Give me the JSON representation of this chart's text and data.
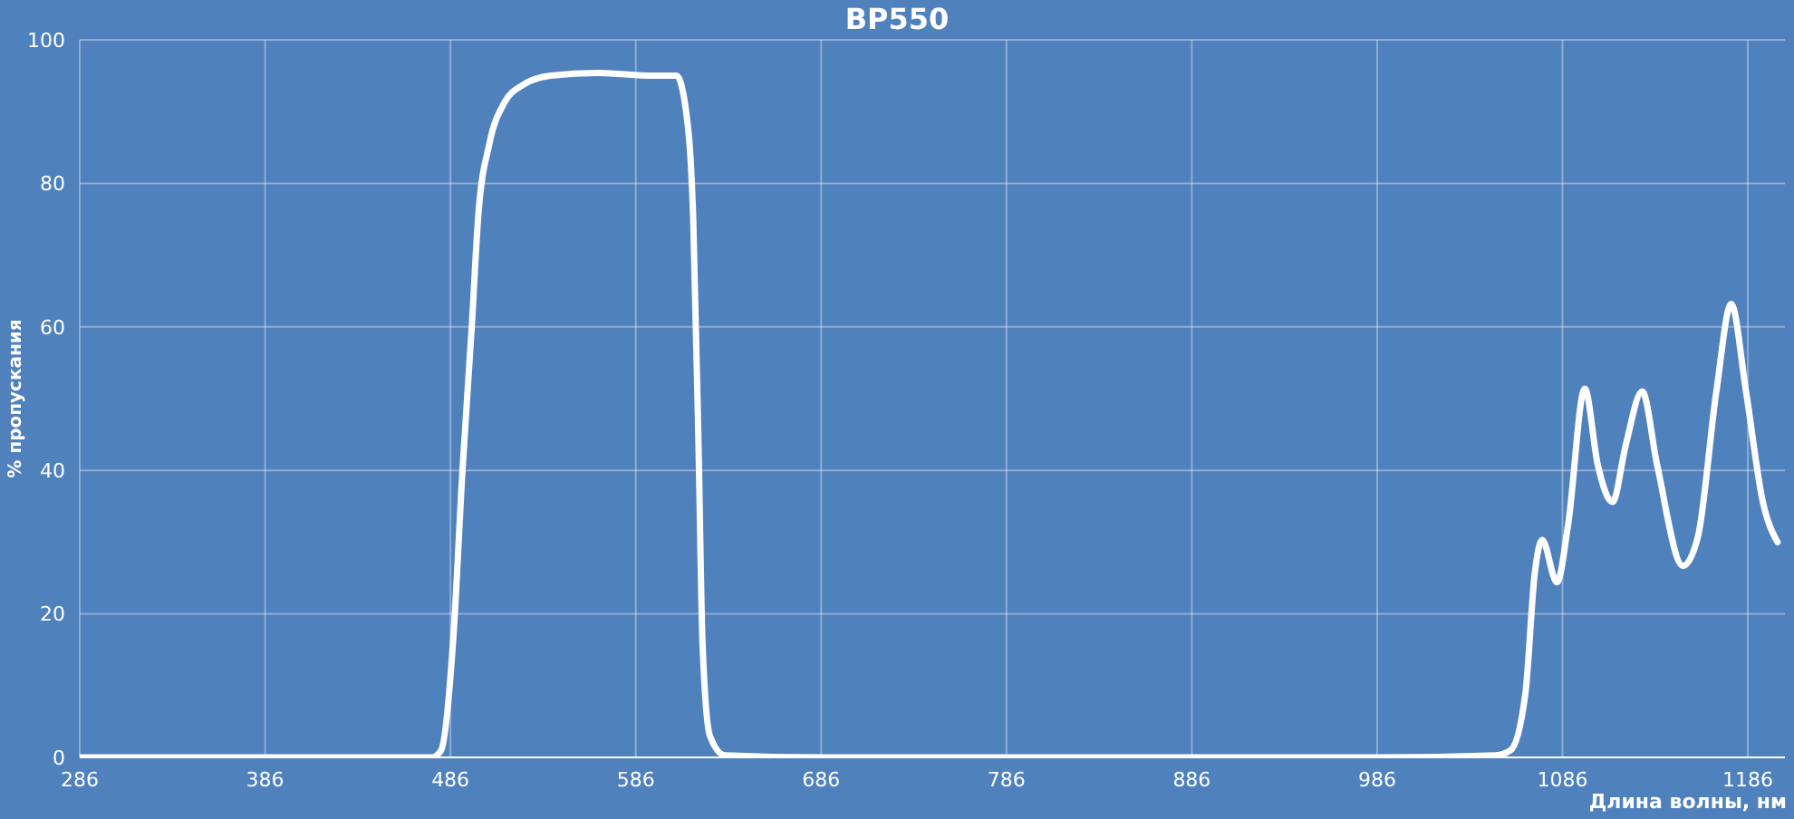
{
  "chart_data": {
    "type": "line",
    "title": "BP550",
    "xlabel": "Длина волны, нм",
    "ylabel": "% пропускания",
    "xlim": [
      286,
      1206
    ],
    "xticks": [
      286,
      386,
      486,
      586,
      686,
      786,
      886,
      986,
      1086,
      1186
    ],
    "ylim": [
      0,
      100
    ],
    "yticks": [
      0,
      20,
      40,
      60,
      80,
      100
    ],
    "grid": true,
    "legend": false,
    "marker": "none",
    "line_style": "solid",
    "series": [
      {
        "color": "#ffffff",
        "x": [
          286,
          386,
          476,
          481,
          487.5,
          492.5,
          497.5,
          501,
          507,
          515,
          525,
          540,
          566,
          595,
          608,
          613,
          617,
          620,
          622,
          626,
          634,
          686,
          786,
          886,
          986,
          1050,
          1058,
          1066,
          1071,
          1075,
          1083,
          1089,
          1098,
          1105,
          1113,
          1120,
          1129,
          1137,
          1151,
          1159,
          1169,
          1177,
          1185,
          1194,
          1202
        ],
        "values": [
          0,
          0,
          0,
          1,
          16.4,
          40,
          60,
          75.4,
          85.5,
          91.2,
          93.7,
          95,
          95.4,
          95,
          95,
          90.3,
          75,
          41.5,
          16,
          3,
          0.3,
          0,
          0,
          0,
          0,
          0.3,
          1,
          9,
          25.6,
          30.3,
          24.4,
          32.4,
          51.4,
          40.8,
          35.6,
          43.4,
          51,
          40.8,
          26.7,
          30.7,
          51,
          63.2,
          51,
          35.7,
          30
        ]
      }
    ]
  }
}
